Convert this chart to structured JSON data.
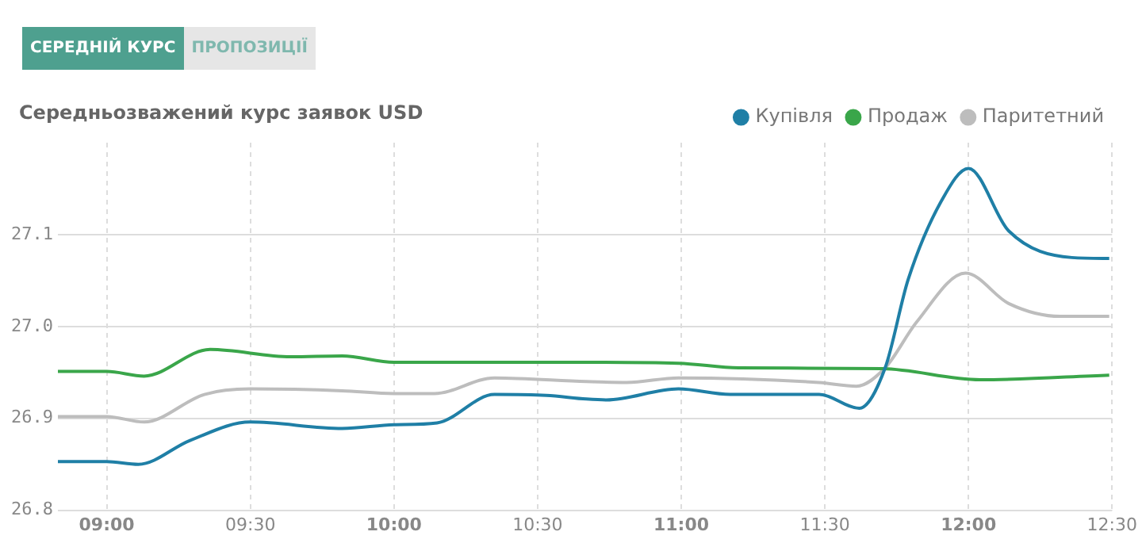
{
  "chart_data": {
    "type": "line",
    "title": "Середньозважений курс заявок USD",
    "annotations": [
      "СЕРЕДНІЙ КУРС",
      "ПРОПОЗИЦІЇ"
    ],
    "xlim": [
      8.83,
      12.5
    ],
    "xticks": [
      {
        "value": 9,
        "label": "09:00"
      },
      {
        "value": 9.5,
        "label": "09:30"
      },
      {
        "value": 10,
        "label": "10:00"
      },
      {
        "value": 10.5,
        "label": "10:30"
      },
      {
        "value": 11,
        "label": "11:00"
      },
      {
        "value": 11.5,
        "label": "11:30"
      },
      {
        "value": 12,
        "label": "12:00"
      },
      {
        "value": 12.5,
        "label": "12:30"
      }
    ],
    "ylim": [
      26.8,
      27.2
    ],
    "yticks": [
      {
        "value": 26.8,
        "label": "26.8"
      },
      {
        "value": 26.9,
        "label": "26.9"
      },
      {
        "value": 27.0,
        "label": "27.0"
      },
      {
        "value": 27.1,
        "label": "27.1"
      }
    ],
    "grid": true,
    "legend": "top right",
    "marker": "none",
    "line_style": "solid",
    "series": [
      {
        "name": "Купівля",
        "color": "#1f7fa6",
        "x": [
          8.83,
          9.0,
          9.11,
          9.29,
          9.5,
          9.82,
          10.0,
          10.15,
          10.35,
          10.53,
          10.67,
          10.74,
          10.99,
          11.17,
          11.48,
          11.62,
          11.71,
          11.79,
          11.91,
          12.0,
          12.14,
          12.36,
          12.49
        ],
        "values": [
          26.853,
          26.853,
          26.85,
          26.876,
          26.896,
          26.889,
          26.893,
          26.895,
          26.926,
          26.925,
          26.921,
          26.92,
          26.932,
          26.926,
          26.926,
          26.911,
          26.955,
          27.051,
          27.139,
          27.172,
          27.104,
          27.075,
          27.074
        ]
      },
      {
        "name": "Продаж",
        "color": "#3aa64a",
        "x": [
          8.83,
          9.0,
          9.13,
          9.36,
          9.64,
          9.82,
          10.0,
          10.35,
          10.67,
          10.99,
          11.2,
          11.7,
          12.04,
          12.49
        ],
        "values": [
          26.951,
          26.951,
          26.946,
          26.975,
          26.967,
          26.968,
          26.961,
          26.961,
          26.961,
          26.96,
          26.955,
          26.954,
          26.942,
          26.947
        ]
      },
      {
        "name": "Паритетний",
        "color": "#bdbdbd",
        "x": [
          8.83,
          9.0,
          9.13,
          9.34,
          9.5,
          9.82,
          10.0,
          10.14,
          10.35,
          10.67,
          10.81,
          10.99,
          11.48,
          11.61,
          11.71,
          11.82,
          11.99,
          12.14,
          12.32,
          12.49
        ],
        "values": [
          26.902,
          26.902,
          26.896,
          26.926,
          26.932,
          26.93,
          26.927,
          26.927,
          26.944,
          26.94,
          26.939,
          26.944,
          26.939,
          26.935,
          26.955,
          27.005,
          27.058,
          27.025,
          27.011,
          27.011
        ]
      }
    ]
  }
}
